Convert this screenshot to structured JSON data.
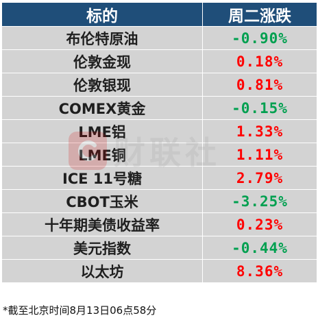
{
  "header": {
    "col1": "标的",
    "col2": "周二涨跌"
  },
  "rows": [
    {
      "name": "布伦特原油",
      "change": "-0.90%",
      "direction": "down"
    },
    {
      "name": "伦敦金现",
      "change": "0.18%",
      "direction": "up"
    },
    {
      "name": "伦敦银现",
      "change": "0.81%",
      "direction": "up"
    },
    {
      "name": "COMEX黄金",
      "change": "-0.15%",
      "direction": "down"
    },
    {
      "name": "LME铝",
      "change": "1.33%",
      "direction": "up"
    },
    {
      "name": "LME铜",
      "change": "1.11%",
      "direction": "up"
    },
    {
      "name": "ICE 11号糖",
      "change": "2.79%",
      "direction": "up"
    },
    {
      "name": "CBOT玉米",
      "change": "-3.25%",
      "direction": "down"
    },
    {
      "name": "十年期美债收益率",
      "change": "0.23%",
      "direction": "up"
    },
    {
      "name": "美元指数",
      "change": "-0.44%",
      "direction": "down"
    },
    {
      "name": "以太坊",
      "change": "8.36%",
      "direction": "up"
    }
  ],
  "footnote": "*截至北京时间8月13日06点58分",
  "watermark": {
    "text": "财联社",
    "icon": "cls-logo-icon"
  },
  "colors": {
    "header_bg": "#1f4e79",
    "row_bg": "#d3d3d3",
    "up": "#ff0000",
    "down": "#00a050"
  }
}
